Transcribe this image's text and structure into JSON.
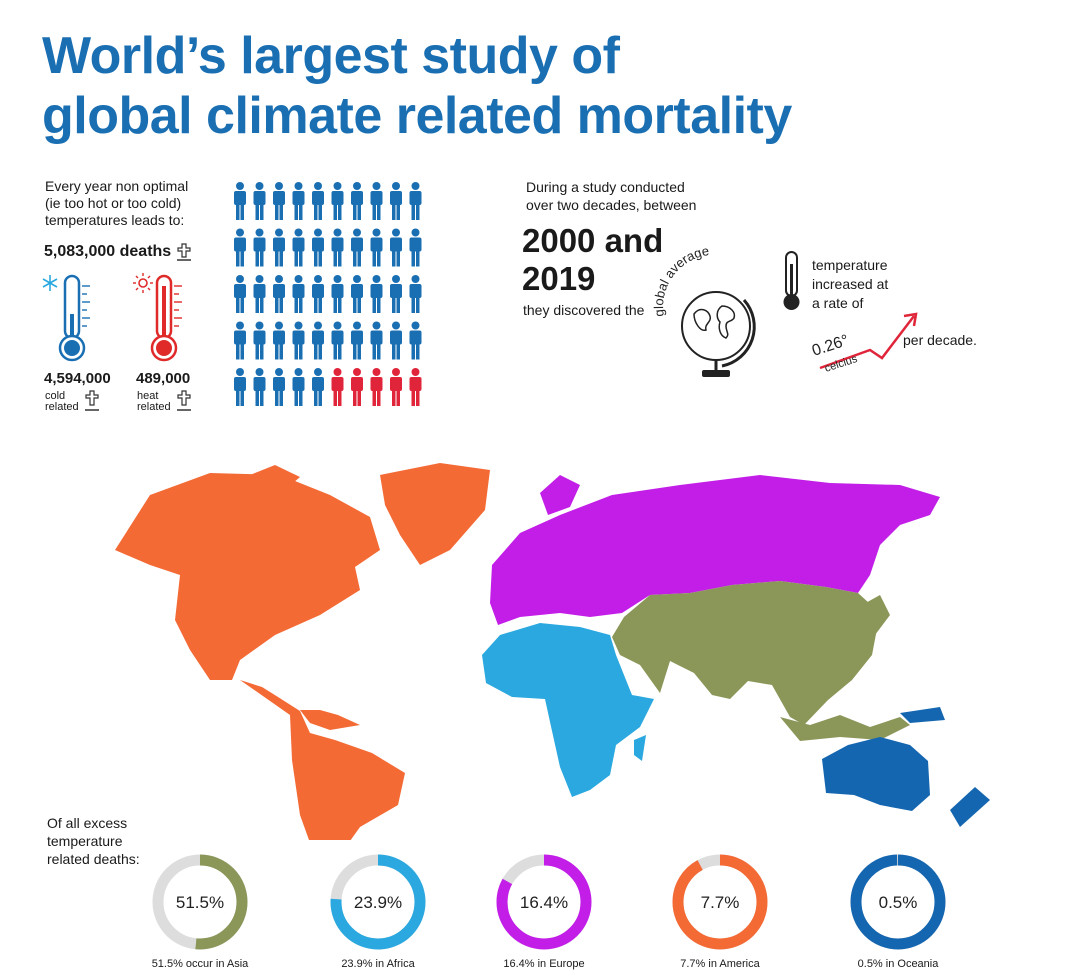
{
  "title": {
    "line1": "World’s largest study of",
    "line2": "global climate related mortality"
  },
  "intro": {
    "text1": "Every year non optimal",
    "text2": "(ie too hot or too cold)",
    "text3": "temperatures leads to:",
    "total_deaths": "5,083,000 deaths"
  },
  "cold": {
    "value": "4,594,000",
    "label1": "cold",
    "label2": "related",
    "icon": "snowflake-icon",
    "color": "#1a6fb3"
  },
  "heat": {
    "value": "489,000",
    "label1": "heat",
    "label2": "related",
    "icon": "sun-icon",
    "color": "#e02a2a"
  },
  "people_grid": {
    "rows": 5,
    "cols": 10,
    "total": 50,
    "heat_count": 5,
    "cold_color": "#1a6fb3",
    "heat_color": "#e0253a"
  },
  "study": {
    "line1": "During a study conducted",
    "line2": "over two decades, between",
    "year1": "2000 and",
    "year2": "2019",
    "discovered": "they discovered the",
    "globe_caption": "global average",
    "temp1": "temperature",
    "temp2": "increased at",
    "temp3": "a rate of",
    "rate": "0.26°",
    "rate_unit": "celcius",
    "per_decade": "per decade."
  },
  "map_colors": {
    "america": "#f46a35",
    "europe": "#c21ee8",
    "africa": "#2aa8df",
    "asia": "#8b9659",
    "oceania": "#1566b0"
  },
  "breakdown": {
    "heading1": "Of all excess",
    "heading2": "temperature",
    "heading3": "related deaths:",
    "items": [
      {
        "pct": "51.5%",
        "value": 51.5,
        "caption": "51.5% occur in Asia",
        "color": "#8b9659"
      },
      {
        "pct": "23.9%",
        "value": 23.9,
        "caption": "23.9% in Africa",
        "color": "#2aa8df"
      },
      {
        "pct": "16.4%",
        "value": 16.4,
        "caption": "16.4% in Europe",
        "color": "#c21ee8"
      },
      {
        "pct": "7.7%",
        "value": 7.7,
        "caption": "7.7% in America",
        "color": "#f46a35"
      },
      {
        "pct": "0.5%",
        "value": 0.5,
        "caption": "0.5% in Oceania",
        "color": "#1566b0"
      }
    ]
  }
}
